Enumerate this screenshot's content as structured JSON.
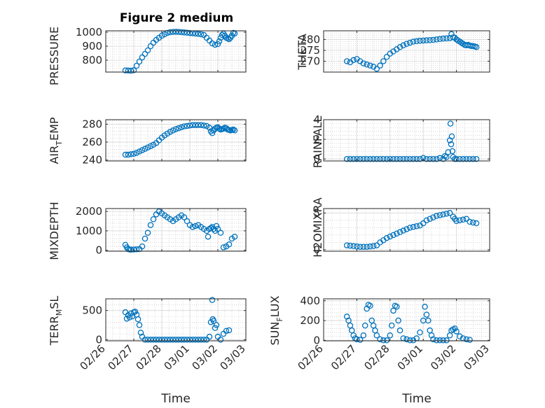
{
  "chart_data": [
    {
      "type": "scatter",
      "title": "Figure 2 medium",
      "ylabel": "PRESSURE",
      "xlim": [
        "02/26",
        "03/03"
      ],
      "ylim": [
        715,
        1010
      ],
      "yticks": [
        800,
        900,
        1000
      ],
      "xticks": [
        "02/26",
        "02/27",
        "02/28",
        "03/01",
        "03/02",
        "03/03"
      ],
      "grid": true,
      "x": [
        0.7,
        0.8,
        0.9,
        1.0,
        1.1,
        1.2,
        1.3,
        1.4,
        1.5,
        1.6,
        1.7,
        1.8,
        1.9,
        2.0,
        2.1,
        2.2,
        2.3,
        2.4,
        2.5,
        2.6,
        2.7,
        2.8,
        2.9,
        3.0,
        3.1,
        3.2,
        3.3,
        3.4,
        3.5,
        3.6,
        3.7,
        3.8,
        3.9,
        4.0,
        4.05,
        4.1,
        4.15,
        4.2,
        4.25,
        4.3,
        4.35,
        4.4,
        4.45,
        4.5,
        4.55,
        4.6
      ],
      "y": [
        727,
        726,
        725,
        728,
        760,
        790,
        820,
        845,
        870,
        900,
        925,
        945,
        960,
        975,
        985,
        995,
        1000,
        1002,
        1003,
        1002,
        1000,
        998,
        996,
        994,
        992,
        990,
        988,
        985,
        980,
        960,
        940,
        920,
        910,
        915,
        935,
        960,
        980,
        990,
        975,
        960,
        955,
        950,
        960,
        975,
        995,
        990
      ]
    },
    {
      "type": "scatter",
      "ylabel": "THETA",
      "xlim": [
        "02/26",
        "03/03"
      ],
      "ylim": [
        265,
        284
      ],
      "yticks": [
        270,
        275,
        280
      ],
      "xticks": [
        "02/26",
        "02/27",
        "02/28",
        "03/01",
        "03/02",
        "03/03"
      ],
      "grid": true,
      "x": [
        0.7,
        0.8,
        0.9,
        1.0,
        1.1,
        1.2,
        1.3,
        1.4,
        1.5,
        1.6,
        1.7,
        1.8,
        1.9,
        2.0,
        2.1,
        2.2,
        2.3,
        2.4,
        2.5,
        2.6,
        2.7,
        2.8,
        2.9,
        3.0,
        3.1,
        3.2,
        3.3,
        3.4,
        3.5,
        3.6,
        3.7,
        3.8,
        3.85,
        3.9,
        3.95,
        4.0,
        4.05,
        4.1,
        4.15,
        4.2,
        4.25,
        4.3,
        4.35,
        4.4,
        4.45,
        4.5,
        4.55,
        4.6
      ],
      "y": [
        270,
        269.5,
        270.5,
        271,
        270,
        269,
        268.5,
        268,
        267.5,
        266.5,
        268,
        270,
        272,
        273.5,
        274.5,
        275.5,
        276.5,
        277.3,
        278,
        278.5,
        279,
        279.2,
        279.4,
        279.5,
        279.6,
        279.7,
        279.8,
        280,
        280.2,
        280.4,
        280.5,
        280.6,
        282.5,
        281,
        280.8,
        280,
        279.5,
        279,
        278.5,
        278,
        277.5,
        277.3,
        277.5,
        277.2,
        277,
        277,
        276.8,
        276.5
      ]
    },
    {
      "type": "scatter",
      "ylabel": "AIR_TEMP",
      "xlim": [
        "02/26",
        "03/03"
      ],
      "ylim": [
        239,
        285
      ],
      "yticks": [
        240,
        260,
        280
      ],
      "xticks": [
        "02/26",
        "02/27",
        "02/28",
        "03/01",
        "03/02",
        "03/03"
      ],
      "grid": true,
      "x": [
        0.7,
        0.8,
        0.9,
        1.0,
        1.1,
        1.2,
        1.3,
        1.4,
        1.5,
        1.6,
        1.7,
        1.8,
        1.9,
        2.0,
        2.1,
        2.2,
        2.3,
        2.4,
        2.5,
        2.6,
        2.7,
        2.8,
        2.9,
        3.0,
        3.1,
        3.2,
        3.3,
        3.4,
        3.5,
        3.6,
        3.7,
        3.75,
        3.8,
        3.85,
        3.9,
        3.95,
        4.0,
        4.05,
        4.1,
        4.15,
        4.2,
        4.25,
        4.3,
        4.35,
        4.4,
        4.45,
        4.5,
        4.55,
        4.6
      ],
      "y": [
        246,
        246,
        246.5,
        247,
        248,
        249.5,
        251,
        252.5,
        254,
        255.5,
        257,
        259,
        262,
        265,
        267.5,
        269.5,
        271.5,
        273,
        274.5,
        275.5,
        276.5,
        277.5,
        278,
        278.5,
        279,
        279,
        279,
        279,
        278.5,
        278,
        276,
        272,
        270,
        273,
        275,
        276,
        276.5,
        275,
        274,
        274.5,
        275,
        276,
        275.5,
        274,
        273.5,
        273,
        273.5,
        274,
        273
      ]
    },
    {
      "type": "scatter",
      "ylabel": "RAINFALL",
      "xlim": [
        "02/26",
        "03/03"
      ],
      "ylim": [
        -0.2,
        4.0
      ],
      "yticks": [
        0,
        2,
        4
      ],
      "xticks": [
        "02/26",
        "02/27",
        "02/28",
        "03/01",
        "03/02",
        "03/03"
      ],
      "grid": true,
      "x": [
        0.7,
        0.8,
        0.9,
        1.0,
        1.1,
        1.2,
        1.3,
        1.4,
        1.5,
        1.6,
        1.7,
        1.8,
        1.9,
        2.0,
        2.1,
        2.2,
        2.3,
        2.4,
        2.5,
        2.6,
        2.7,
        2.8,
        2.9,
        3.0,
        3.1,
        3.2,
        3.3,
        3.4,
        3.5,
        3.6,
        3.65,
        3.7,
        3.75,
        3.8,
        3.82,
        3.84,
        3.86,
        3.88,
        3.9,
        3.95,
        4.0,
        4.1,
        4.2,
        4.3,
        4.4,
        4.5,
        4.6
      ],
      "y": [
        0,
        0,
        0,
        0,
        0,
        0,
        0,
        0,
        0,
        0,
        0,
        0,
        0,
        0,
        0,
        0,
        0,
        0,
        0,
        0,
        0,
        0,
        0,
        0.1,
        0,
        0,
        0,
        0,
        0.1,
        0,
        0.3,
        0.2,
        0.7,
        1.9,
        3.6,
        1.5,
        2.3,
        0.8,
        0.2,
        0,
        0,
        0,
        0,
        0,
        0,
        0,
        0
      ]
    },
    {
      "type": "scatter",
      "ylabel": "MIXDEPTH",
      "xlim": [
        "02/26",
        "03/03"
      ],
      "ylim": [
        -50,
        2150
      ],
      "yticks": [
        0,
        1000,
        2000
      ],
      "xticks": [
        "02/26",
        "02/27",
        "02/28",
        "03/01",
        "03/02",
        "03/03"
      ],
      "grid": true,
      "x": [
        0.7,
        0.75,
        0.8,
        0.85,
        0.9,
        1.0,
        1.1,
        1.2,
        1.3,
        1.4,
        1.5,
        1.6,
        1.7,
        1.8,
        1.9,
        2.0,
        2.1,
        2.2,
        2.3,
        2.4,
        2.5,
        2.6,
        2.7,
        2.8,
        2.9,
        3.0,
        3.1,
        3.2,
        3.3,
        3.4,
        3.5,
        3.6,
        3.65,
        3.7,
        3.75,
        3.8,
        3.85,
        3.9,
        3.95,
        4.0,
        4.1,
        4.2,
        4.3,
        4.4,
        4.5,
        4.6
      ],
      "y": [
        280,
        150,
        60,
        40,
        30,
        40,
        50,
        60,
        200,
        600,
        900,
        1300,
        1600,
        1850,
        2000,
        1900,
        1800,
        1700,
        1600,
        1500,
        1600,
        1700,
        1800,
        1700,
        1500,
        1300,
        1200,
        1250,
        1300,
        1200,
        1100,
        1000,
        700,
        1100,
        1150,
        1200,
        1100,
        1000,
        1250,
        1100,
        900,
        150,
        200,
        300,
        600,
        700
      ]
    },
    {
      "type": "scatter",
      "ylabel": "H2OMIXRA",
      "xlim": [
        "02/26",
        "03/03"
      ],
      "ylim": [
        -0.2,
        5.6
      ],
      "yticks": [
        0,
        5
      ],
      "xticks": [
        "02/26",
        "02/27",
        "02/28",
        "03/01",
        "03/02",
        "03/03"
      ],
      "grid": true,
      "x": [
        0.7,
        0.8,
        0.9,
        1.0,
        1.1,
        1.2,
        1.3,
        1.4,
        1.5,
        1.6,
        1.7,
        1.8,
        1.9,
        2.0,
        2.1,
        2.2,
        2.3,
        2.4,
        2.5,
        2.6,
        2.7,
        2.8,
        2.9,
        3.0,
        3.1,
        3.2,
        3.3,
        3.4,
        3.5,
        3.6,
        3.7,
        3.8,
        3.9,
        3.95,
        4.0,
        4.1,
        4.2,
        4.3,
        4.4,
        4.5,
        4.6
      ],
      "y": [
        0.6,
        0.55,
        0.5,
        0.45,
        0.4,
        0.4,
        0.4,
        0.45,
        0.5,
        0.6,
        1.0,
        1.3,
        1.6,
        1.8,
        2.0,
        2.2,
        2.4,
        2.6,
        2.8,
        3.0,
        3.1,
        3.2,
        3.3,
        3.6,
        4.0,
        4.2,
        4.4,
        4.6,
        4.7,
        4.8,
        4.9,
        5.0,
        4.5,
        4.2,
        3.9,
        4.0,
        4.1,
        4.2,
        3.8,
        3.7,
        3.6
      ]
    },
    {
      "type": "scatter",
      "ylabel": "TERR_MSL",
      "xlim": [
        "02/26",
        "03/03"
      ],
      "ylim": [
        -20,
        700
      ],
      "yticks": [
        0,
        500
      ],
      "xticks": [
        "02/26",
        "02/27",
        "02/28",
        "03/01",
        "03/02",
        "03/03"
      ],
      "grid": true,
      "x": [
        0.7,
        0.75,
        0.8,
        0.85,
        0.9,
        0.95,
        1.0,
        1.05,
        1.1,
        1.15,
        1.2,
        1.25,
        1.3,
        1.4,
        1.5,
        1.6,
        1.7,
        1.8,
        1.9,
        2.0,
        2.1,
        2.2,
        2.3,
        2.4,
        2.5,
        2.6,
        2.7,
        2.8,
        2.9,
        3.0,
        3.1,
        3.2,
        3.3,
        3.4,
        3.5,
        3.6,
        3.7,
        3.75,
        3.8,
        3.82,
        3.85,
        3.9,
        3.95,
        4.0,
        4.1,
        4.2,
        4.3,
        4.4
      ],
      "y": [
        470,
        360,
        420,
        380,
        450,
        400,
        470,
        480,
        430,
        350,
        250,
        120,
        50,
        0,
        0,
        0,
        0,
        0,
        0,
        0,
        0,
        0,
        0,
        0,
        0,
        0,
        0,
        0,
        0,
        0,
        0,
        0,
        0,
        0,
        0,
        0,
        50,
        300,
        680,
        350,
        320,
        200,
        250,
        50,
        0,
        100,
        150,
        160
      ]
    },
    {
      "type": "scatter",
      "ylabel": "SUN_FLUX",
      "xlim": [
        "02/26",
        "03/03"
      ],
      "ylim": [
        -5,
        420
      ],
      "yticks": [
        0,
        200,
        400
      ],
      "xticks": [
        "02/26",
        "02/27",
        "02/28",
        "03/01",
        "03/02",
        "03/03"
      ],
      "grid": true,
      "x": [
        0.7,
        0.75,
        0.8,
        0.85,
        0.9,
        0.95,
        1.0,
        1.1,
        1.2,
        1.25,
        1.3,
        1.35,
        1.4,
        1.45,
        1.5,
        1.55,
        1.6,
        1.7,
        1.8,
        1.9,
        2.0,
        2.05,
        2.1,
        2.15,
        2.2,
        2.25,
        2.3,
        2.4,
        2.5,
        2.6,
        2.7,
        2.8,
        2.9,
        3.0,
        3.05,
        3.1,
        3.15,
        3.2,
        3.25,
        3.3,
        3.4,
        3.5,
        3.6,
        3.7,
        3.8,
        3.85,
        3.9,
        3.95,
        4.0,
        4.1,
        4.2,
        4.3,
        4.4
      ],
      "y": [
        240,
        200,
        150,
        100,
        50,
        20,
        10,
        5,
        50,
        150,
        320,
        360,
        350,
        200,
        150,
        100,
        50,
        10,
        0,
        0,
        50,
        150,
        300,
        350,
        340,
        200,
        100,
        20,
        10,
        0,
        0,
        20,
        80,
        200,
        340,
        260,
        200,
        100,
        50,
        10,
        0,
        0,
        0,
        0,
        50,
        100,
        110,
        120,
        90,
        40,
        20,
        10,
        5
      ]
    }
  ],
  "time_label": "Time",
  "ylabel_parts": {
    "air_temp": {
      "base": "AIR",
      "sub": "T",
      "rest": "EMP"
    },
    "terr_msl": {
      "base": "TERR",
      "sub": "M",
      "rest": "SL"
    },
    "sun_flux": {
      "base": "SUN",
      "sub": "F",
      "rest": "LUX"
    }
  },
  "colors": {
    "marker": "#0072BD",
    "grid": "#bdbdbd",
    "axis": "#262626"
  }
}
